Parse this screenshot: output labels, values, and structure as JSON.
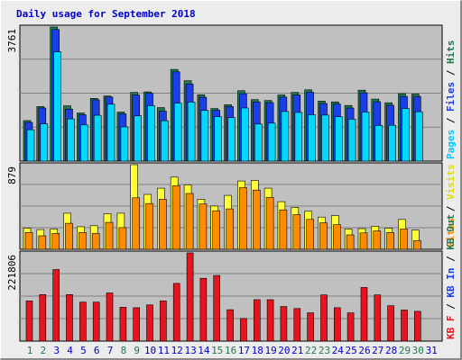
{
  "chart_data": {
    "type": "bar",
    "title": "Daily usage for September 2018",
    "days": [
      "1",
      "2",
      "3",
      "4",
      "5",
      "6",
      "7",
      "8",
      "9",
      "10",
      "11",
      "12",
      "13",
      "14",
      "15",
      "16",
      "17",
      "18",
      "19",
      "20",
      "21",
      "22",
      "23",
      "24",
      "25",
      "26",
      "27",
      "28",
      "29",
      "30",
      "31"
    ],
    "weekend_days": [
      "1",
      "2",
      "8",
      "9",
      "15",
      "16",
      "22",
      "23",
      "29",
      "30"
    ],
    "panels": [
      {
        "id": "top",
        "max_label": "3761",
        "ymax": 3761,
        "legend": [
          "Pages",
          "Files",
          "Hits"
        ],
        "series": [
          {
            "name": "Hits",
            "color": "#1e7a4e",
            "values": [
              1135,
              1530,
              3761,
              1550,
              1350,
              1760,
              1825,
              1375,
              1925,
              1940,
              1500,
              2572,
              2255,
              1860,
              1475,
              1580,
              1975,
              1725,
              1700,
              1855,
              1925,
              2000,
              1680,
              1660,
              1560,
              1990,
              1740,
              1635,
              1890,
              1880,
              0
            ]
          },
          {
            "name": "Files",
            "color": "#1a3ee8",
            "values": [
              1085,
              1490,
              3690,
              1460,
              1300,
              1720,
              1795,
              1325,
              1855,
              1900,
              1400,
              2505,
              2160,
              1790,
              1425,
              1530,
              1890,
              1660,
              1640,
              1795,
              1855,
              1930,
              1615,
              1600,
              1490,
              1915,
              1665,
              1565,
              1815,
              1815,
              0
            ]
          },
          {
            "name": "Pages",
            "color": "#00d8ff",
            "values": [
              880,
              1045,
              3065,
              1185,
              1015,
              1285,
              1595,
              960,
              1270,
              1555,
              1130,
              1625,
              1655,
              1420,
              1245,
              1220,
              1490,
              1040,
              1065,
              1390,
              1365,
              1300,
              1290,
              1245,
              1175,
              1375,
              1000,
              1005,
              1475,
              1385,
              0
            ]
          }
        ]
      },
      {
        "id": "middle",
        "max_label": "879",
        "ymax": 879,
        "legend": [
          "Sites",
          "Visits"
        ],
        "series": [
          {
            "name": "Visits",
            "color": "#ffff33",
            "values": [
              220,
              205,
              210,
              375,
              235,
              245,
              370,
              375,
              879,
              570,
              635,
              750,
              670,
              520,
              450,
              560,
              710,
              715,
              635,
              495,
              435,
              395,
              335,
              350,
              210,
              215,
              240,
              220,
              310,
              200,
              0
            ]
          },
          {
            "name": "Sites",
            "color": "#ff8c00",
            "values": [
              175,
              140,
              165,
              270,
              175,
              165,
              280,
              225,
              535,
              475,
              520,
              660,
              580,
              470,
              400,
              420,
              640,
              615,
              540,
              410,
              360,
              310,
              275,
              255,
              150,
              170,
              190,
              175,
              210,
              90,
              0
            ]
          }
        ]
      },
      {
        "id": "bottom",
        "max_label": "221806",
        "ymax": 221806,
        "legend": [
          "KB F",
          "KB In",
          "KB Out"
        ],
        "series": [
          {
            "name": "KB F",
            "color": "#e6141e",
            "values": [
              101000,
              117000,
              180000,
              117000,
              98000,
              98000,
              121000,
              85000,
              84000,
              91000,
              101000,
              145000,
              221806,
              158000,
              165000,
              79000,
              57000,
              104000,
              104000,
              87000,
              82000,
              71000,
              116000,
              84000,
              71000,
              135000,
              116000,
              89000,
              78000,
              75000,
              0
            ]
          }
        ]
      }
    ]
  },
  "colors": {
    "plot_bg": "#c0c0c0",
    "title": "#0000cc",
    "axis_label_hits": "#1e7a4e",
    "axis_label_files": "#1a3ee8",
    "axis_label_pages": "#00c8ff",
    "axis_label_visits": "#dddd00",
    "axis_label_sites": "#ff8c00",
    "axis_label_kb_out": "#1e7a4e",
    "axis_label_kb_in": "#1a3ee8",
    "axis_label_kb_f": "#e6141e",
    "weekday_label": "#0000cc",
    "weekend_label": "#1e7a4e"
  }
}
